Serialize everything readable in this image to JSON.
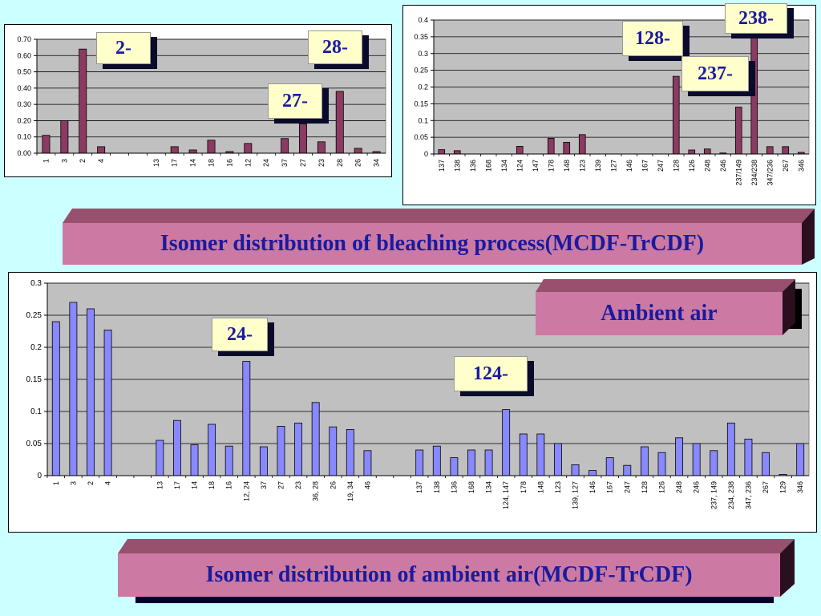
{
  "chart_data": [
    {
      "id": "bleach-left",
      "type": "bar",
      "categories": [
        "1",
        "3",
        "2",
        "4",
        "",
        "",
        "13",
        "17",
        "14",
        "18",
        "16",
        "12",
        "24",
        "37",
        "27",
        "23",
        "28",
        "26",
        "34"
      ],
      "values": [
        0.11,
        0.2,
        0.64,
        0.04,
        0,
        0,
        0,
        0.04,
        0.02,
        0.08,
        0.01,
        0.06,
        0,
        0.09,
        0.18,
        0.07,
        0.38,
        0.03,
        0.01
      ],
      "ylim": [
        0,
        0.7
      ],
      "yticks": [
        "0.00",
        "0.10",
        "0.20",
        "0.30",
        "0.40",
        "0.50",
        "0.60",
        "0.70"
      ],
      "bar_color": "#8b3a62",
      "grid": true
    },
    {
      "id": "bleach-right",
      "type": "bar",
      "categories": [
        "137",
        "138",
        "136",
        "168",
        "134",
        "124",
        "147",
        "178",
        "148",
        "123",
        "139",
        "127",
        "146",
        "167",
        "247",
        "128",
        "126",
        "248",
        "246",
        "237/149",
        "234/238",
        "347/236",
        "267",
        "346"
      ],
      "values": [
        0.013,
        0.01,
        0,
        0,
        0,
        0.023,
        0,
        0.047,
        0.035,
        0.058,
        0,
        0,
        0,
        0,
        0,
        0.232,
        0.012,
        0.015,
        0.003,
        0.14,
        0.38,
        0.022,
        0.022,
        0.005
      ],
      "ylim": [
        0,
        0.4
      ],
      "yticks": [
        "0",
        "0.05",
        "0.1",
        "0.15",
        "0.2",
        "0.25",
        "0.3",
        "0.35",
        "0.4"
      ],
      "bar_color": "#8b3a62",
      "grid": true
    },
    {
      "id": "ambient",
      "type": "bar",
      "categories": [
        "1",
        "3",
        "2",
        "4",
        "",
        "",
        "13",
        "17",
        "14",
        "18",
        "16",
        "12, 24",
        "37",
        "27",
        "23",
        "36, 28",
        "26",
        "19, 34",
        "46",
        "",
        "",
        "137",
        "138",
        "136",
        "168",
        "134",
        "124, 147",
        "178",
        "148",
        "123",
        "139, 127",
        "146",
        "167",
        "247",
        "128",
        "126",
        "248",
        "246",
        "237, 149",
        "234, 238",
        "347, 236",
        "267",
        "129",
        "346"
      ],
      "values": [
        0.24,
        0.27,
        0.26,
        0.227,
        0,
        0,
        0.055,
        0.086,
        0.048,
        0.08,
        0.046,
        0.178,
        0.045,
        0.077,
        0.082,
        0.114,
        0.076,
        0.072,
        0.039,
        0,
        0,
        0.04,
        0.046,
        0.028,
        0.04,
        0.04,
        0.103,
        0.065,
        0.065,
        0.05,
        0.017,
        0.008,
        0.028,
        0.016,
        0.045,
        0.036,
        0.059,
        0.05,
        0.039,
        0.082,
        0.057,
        0.036,
        0.002,
        0.05
      ],
      "ylim": [
        0,
        0.3
      ],
      "yticks": [
        "0",
        "0.05",
        "0.1",
        "0.15",
        "0.2",
        "0.25",
        "0.3"
      ],
      "bar_color": "#8888ff",
      "grid": true
    }
  ],
  "banners": {
    "bleaching": "Isomer distribution of bleaching process(MCDF-TrCDF)",
    "ambient_air": "Ambient air",
    "ambient_title": "Isomer distribution of ambient air(MCDF-TrCDF)"
  },
  "callouts": {
    "c2": "2-",
    "c28": "28-",
    "c27": "27-",
    "c128": "128-",
    "c238": "238-",
    "c237": "237-",
    "c24": "24-",
    "c124": "124-"
  },
  "colors": {
    "background": "#ccffff",
    "plot_area": "#c0c0c0",
    "banner_face": "#cc7aa3",
    "banner_top": "#99506f",
    "banner_text": "#1a1aa0",
    "callout_face": "#ffffcc"
  }
}
